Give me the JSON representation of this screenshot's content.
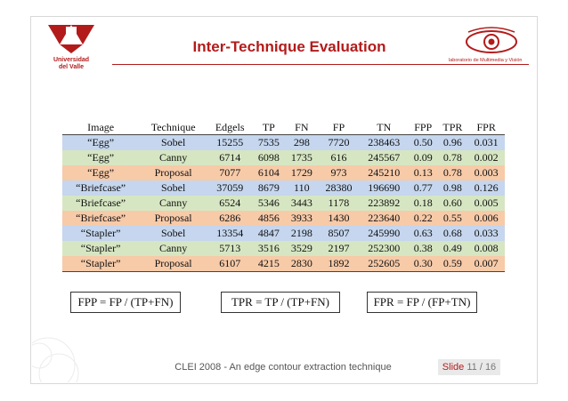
{
  "header": {
    "title": "Inter-Technique Evaluation",
    "university_name_line1": "Universidad",
    "university_name_line2": "del Valle",
    "lab_name": "laboratorio de Multimedia y Visión"
  },
  "table": {
    "columns": [
      "Image",
      "Technique",
      "Edgels",
      "TP",
      "FN",
      "FP",
      "TN",
      "FPP",
      "TPR",
      "FPR"
    ],
    "rows": [
      [
        "“Egg”",
        "Sobel",
        "15255",
        "7535",
        "298",
        "7720",
        "238463",
        "0.50",
        "0.96",
        "0.031"
      ],
      [
        "“Egg”",
        "Canny",
        "6714",
        "6098",
        "1735",
        "616",
        "245567",
        "0.09",
        "0.78",
        "0.002"
      ],
      [
        "“Egg”",
        "Proposal",
        "7077",
        "6104",
        "1729",
        "973",
        "245210",
        "0.13",
        "0.78",
        "0.003"
      ],
      [
        "“Briefcase”",
        "Sobel",
        "37059",
        "8679",
        "110",
        "28380",
        "196690",
        "0.77",
        "0.98",
        "0.126"
      ],
      [
        "“Briefcase”",
        "Canny",
        "6524",
        "5346",
        "3443",
        "1178",
        "223892",
        "0.18",
        "0.60",
        "0.005"
      ],
      [
        "“Briefcase”",
        "Proposal",
        "6286",
        "4856",
        "3933",
        "1430",
        "223640",
        "0.22",
        "0.55",
        "0.006"
      ],
      [
        "“Stapler”",
        "Sobel",
        "13354",
        "4847",
        "2198",
        "8507",
        "245990",
        "0.63",
        "0.68",
        "0.033"
      ],
      [
        "“Stapler”",
        "Canny",
        "5713",
        "3516",
        "3529",
        "2197",
        "252300",
        "0.38",
        "0.49",
        "0.008"
      ],
      [
        "“Stapler”",
        "Proposal",
        "6107",
        "4215",
        "2830",
        "1892",
        "252605",
        "0.30",
        "0.59",
        "0.007"
      ]
    ],
    "row_colors": {
      "Sobel": "#c5d6ee",
      "Canny": "#d6e6c2",
      "Proposal": "#f7caa8"
    }
  },
  "formulas": {
    "fpp": "FPP = FP / (TP+FN)",
    "tpr": "TPR = TP / (TP+FN)",
    "fpr": "FPR = FP / (FP+TN)"
  },
  "footer": {
    "text": "CLEI 2008 - An edge contour extraction technique",
    "slide_label": "Slide",
    "slide_current": "11",
    "slide_sep": "/",
    "slide_total": "16"
  },
  "colors": {
    "accent": "#b31b1b"
  }
}
